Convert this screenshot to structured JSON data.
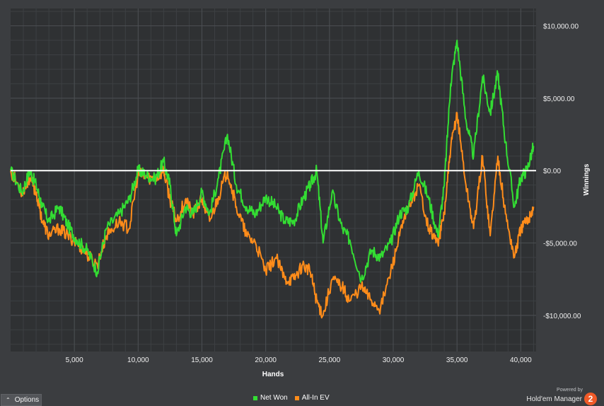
{
  "chart_data": {
    "type": "line",
    "title": "",
    "xlabel": "Hands",
    "ylabel": "Winnings",
    "xlim": [
      0,
      41200
    ],
    "ylim": [
      -12500,
      11200
    ],
    "x_ticks": [
      5000,
      10000,
      15000,
      20000,
      25000,
      30000,
      35000,
      40000
    ],
    "x_tick_labels": [
      "5,000",
      "10,000",
      "15,000",
      "20,000",
      "25,000",
      "30,000",
      "35,000",
      "40,000"
    ],
    "y_ticks": [
      10000,
      5000,
      0,
      -5000,
      -10000
    ],
    "y_tick_labels": [
      "$10,000.00",
      "$5,000.00",
      "$0.00",
      "-$5,000.00",
      "-$10,000.00"
    ],
    "zero_line": true,
    "grid": true,
    "legend_position": "bottom",
    "series": [
      {
        "name": "Net Won",
        "color": "#33dd33",
        "x": [
          0,
          900,
          1500,
          2000,
          2500,
          3000,
          3800,
          4500,
          5200,
          6000,
          6800,
          7500,
          8500,
          9300,
          10000,
          10500,
          11300,
          12000,
          12500,
          13000,
          13700,
          14300,
          15000,
          15600,
          16300,
          17000,
          17700,
          18500,
          19200,
          20000,
          20800,
          21500,
          22200,
          22900,
          23500,
          24000,
          24500,
          25200,
          26000,
          26600,
          27500,
          28300,
          29000,
          29800,
          30500,
          31200,
          32000,
          32800,
          33500,
          34000,
          34500,
          35000,
          35700,
          36300,
          37000,
          37600,
          38200,
          38800,
          39500,
          40000,
          40500,
          41000
        ],
        "values": [
          0,
          -1500,
          0,
          -1000,
          -2500,
          -3500,
          -2500,
          -3800,
          -4800,
          -5500,
          -7000,
          -4000,
          -3000,
          -2000,
          0,
          -200,
          -600,
          600,
          -1000,
          -4500,
          -2500,
          -3000,
          -1500,
          -3000,
          -500,
          2500,
          -1000,
          -2500,
          -3000,
          -1800,
          -2500,
          -3500,
          -3500,
          -2000,
          -1000,
          0,
          -5000,
          -1500,
          -4000,
          -4800,
          -7500,
          -5500,
          -6000,
          -5000,
          -3000,
          -2500,
          0,
          -2000,
          -4500,
          -1000,
          6000,
          9000,
          3500,
          1000,
          6500,
          4000,
          6700,
          2000,
          -2500,
          -500,
          100,
          1700
        ]
      },
      {
        "name": "All-In EV",
        "color": "#ff8c1a",
        "x": [
          0,
          900,
          1500,
          2000,
          2500,
          3000,
          3800,
          4500,
          5200,
          6000,
          6800,
          7500,
          8500,
          9300,
          10000,
          10500,
          11300,
          12000,
          12500,
          13000,
          13700,
          14300,
          15000,
          15600,
          16300,
          17000,
          17700,
          18500,
          19200,
          20000,
          20800,
          21500,
          22200,
          22900,
          23500,
          24000,
          24500,
          25200,
          26000,
          26600,
          27500,
          28300,
          29000,
          29800,
          30500,
          31200,
          32000,
          32800,
          33500,
          34000,
          34500,
          35000,
          35700,
          36300,
          37000,
          37600,
          38200,
          38800,
          39500,
          40000,
          40500,
          41000
        ],
        "values": [
          0,
          -1500,
          -500,
          -1500,
          -3500,
          -4500,
          -4000,
          -4500,
          -5000,
          -5800,
          -6500,
          -4500,
          -3500,
          -4000,
          -200,
          -400,
          -600,
          0,
          -2000,
          -3500,
          -2000,
          -3000,
          -2000,
          -3500,
          -1800,
          0,
          -2500,
          -4500,
          -5000,
          -7000,
          -6000,
          -7500,
          -7500,
          -6500,
          -7000,
          -9000,
          -10000,
          -7500,
          -8000,
          -9000,
          -8000,
          -9000,
          -9500,
          -7000,
          -4500,
          -2500,
          -1000,
          -4000,
          -5000,
          -3000,
          1500,
          4000,
          -1000,
          -4000,
          1000,
          -4500,
          1000,
          -3000,
          -6000,
          -4000,
          -3500,
          -2500
        ]
      }
    ]
  },
  "legend": {
    "items": [
      {
        "label": "Net Won",
        "color": "#33dd33"
      },
      {
        "label": "All-In EV",
        "color": "#ff8c1a"
      }
    ]
  },
  "options_button": {
    "label": "Options",
    "icon": "chevron-up-icon"
  },
  "branding": {
    "powered_by": "Powered by",
    "product": "Hold'em Manager",
    "logo_text": "2",
    "logo_color": "#f05a28"
  }
}
